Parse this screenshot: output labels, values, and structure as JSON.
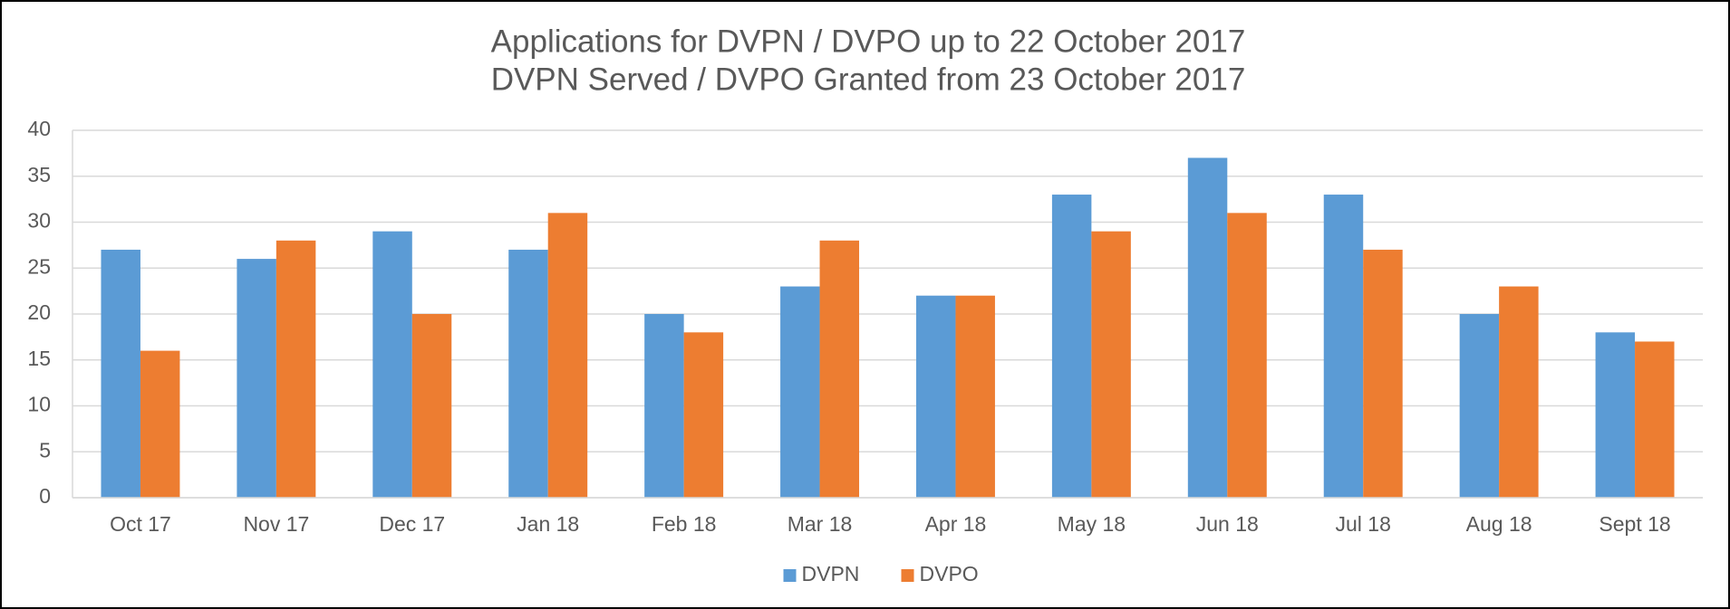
{
  "chart_data": {
    "type": "bar",
    "title": [
      "Applications for DVPN / DVPO up to 22 October 2017",
      "DVPN Served / DVPO Granted from 23 October 2017"
    ],
    "categories": [
      "Oct 17",
      "Nov 17",
      "Dec 17",
      "Jan 18",
      "Feb 18",
      "Mar 18",
      "Apr 18",
      "May 18",
      "Jun 18",
      "Jul 18",
      "Aug 18",
      "Sept 18"
    ],
    "series": [
      {
        "name": "DVPN",
        "color": "#5b9bd5",
        "values": [
          27,
          26,
          29,
          27,
          20,
          23,
          22,
          33,
          37,
          33,
          20,
          18
        ]
      },
      {
        "name": "DVPO",
        "color": "#ed7d31",
        "values": [
          16,
          28,
          20,
          31,
          18,
          28,
          22,
          29,
          31,
          27,
          23,
          17
        ]
      }
    ],
    "ylim": [
      0,
      40
    ],
    "yticks": [
      0,
      5,
      10,
      15,
      20,
      25,
      30,
      35,
      40
    ],
    "grid": true,
    "legend": "bottom"
  }
}
